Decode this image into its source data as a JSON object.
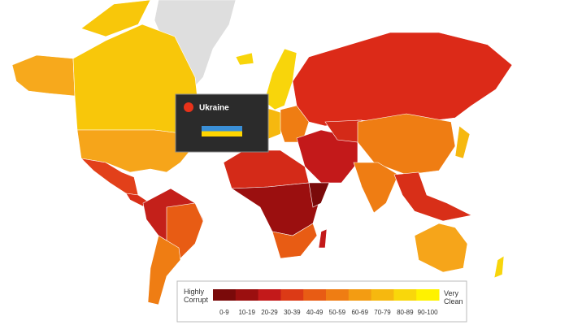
{
  "tooltip": {
    "country": "Ukraine"
  },
  "legend": {
    "low_label": "Highly Corrupt",
    "high_label": "Very Clean",
    "bins": [
      {
        "label": "0-9",
        "color": "#7a0a0a"
      },
      {
        "label": "10-19",
        "color": "#9b0f0f"
      },
      {
        "label": "20-29",
        "color": "#c3191a"
      },
      {
        "label": "30-39",
        "color": "#dc3a16"
      },
      {
        "label": "40-49",
        "color": "#e85c14"
      },
      {
        "label": "50-59",
        "color": "#ef7d13"
      },
      {
        "label": "60-69",
        "color": "#f39c12"
      },
      {
        "label": "70-79",
        "color": "#f6b80f"
      },
      {
        "label": "80-89",
        "color": "#f9d70b"
      },
      {
        "label": "90-100",
        "color": "#fff200"
      }
    ]
  }
}
